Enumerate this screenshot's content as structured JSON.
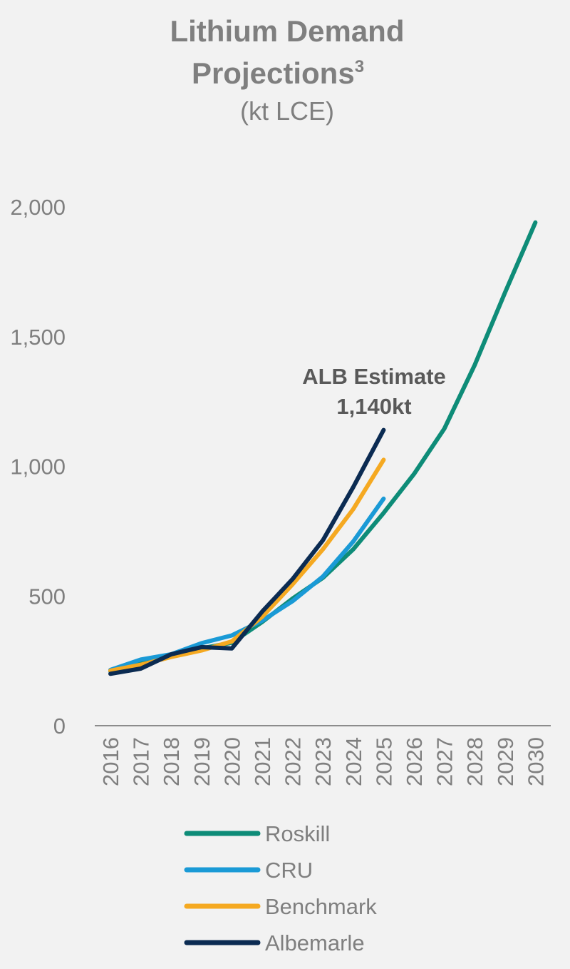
{
  "chart_data": {
    "type": "line",
    "title_line1": "Lithium Demand",
    "title_line2": "Projections",
    "title_superscript": "3",
    "subtitle": "(kt LCE)",
    "xlabel": "",
    "ylabel": "",
    "categories": [
      "2016",
      "2017",
      "2018",
      "2019",
      "2020",
      "2021",
      "2022",
      "2023",
      "2024",
      "2025",
      "2026",
      "2027",
      "2028",
      "2029",
      "2030"
    ],
    "ylim": [
      0,
      2000
    ],
    "yticks": [
      {
        "value": 0,
        "label": "0"
      },
      {
        "value": 500,
        "label": "500"
      },
      {
        "value": 1000,
        "label": "1,000"
      },
      {
        "value": 1500,
        "label": "1,500"
      },
      {
        "value": 2000,
        "label": "2,000"
      }
    ],
    "grid": false,
    "legend_position": "bottom",
    "series": [
      {
        "name": "Roskill",
        "color": "#0e8c78",
        "values": [
          210,
          245,
          272,
          298,
          320,
          400,
          490,
          570,
          680,
          820,
          970,
          1145,
          1390,
          1670,
          1940
        ]
      },
      {
        "name": "CRU",
        "color": "#1a9ad6",
        "values": [
          215,
          255,
          275,
          318,
          348,
          405,
          480,
          575,
          710,
          875,
          null,
          null,
          null,
          null,
          null
        ]
      },
      {
        "name": "Benchmark",
        "color": "#f5a921",
        "values": [
          212,
          235,
          265,
          290,
          325,
          420,
          545,
          680,
          835,
          1025,
          null,
          null,
          null,
          null,
          null
        ]
      },
      {
        "name": "Albemarle",
        "color": "#0b2b52",
        "values": [
          200,
          220,
          275,
          303,
          298,
          440,
          565,
          715,
          920,
          1140,
          null,
          null,
          null,
          null,
          null
        ]
      }
    ],
    "annotation": {
      "line1": "ALB Estimate",
      "line2": "1,140kt"
    }
  }
}
